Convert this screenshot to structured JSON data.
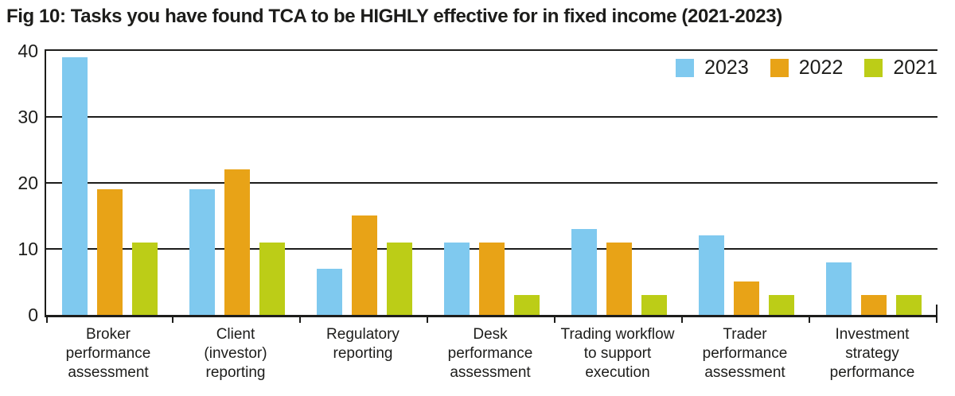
{
  "figure": {
    "title": "Fig 10: Tasks you have found TCA to be HIGHLY effective for in fixed income (2021-2023)"
  },
  "chart_data": {
    "type": "bar",
    "title": "Fig 10: Tasks you have found TCA to be HIGHLY effective for in fixed income (2021-2023)",
    "categories": [
      "Broker\nperformance\nassessment",
      "Client\n(investor)\nreporting",
      "Regulatory\nreporting",
      "Desk\nperformance\nassessment",
      "Trading workflow\nto support\nexecution",
      "Trader\nperformance\nassessment",
      "Investment\nstrategy\nperformance"
    ],
    "series": [
      {
        "name": "2023",
        "color": "#7FC9EF",
        "values": [
          39,
          19,
          7,
          11,
          13,
          12,
          8
        ]
      },
      {
        "name": "2022",
        "color": "#E8A317",
        "values": [
          19,
          22,
          15,
          11,
          11,
          5,
          3
        ]
      },
      {
        "name": "2021",
        "color": "#BCCD17",
        "values": [
          11,
          11,
          11,
          3,
          3,
          3,
          3
        ]
      }
    ],
    "xlabel": "",
    "ylabel": "",
    "ylim": [
      0,
      40
    ],
    "yticks": [
      0,
      10,
      20,
      30,
      40
    ],
    "grid": "horizontal",
    "legend_position": "top-right",
    "axis_color": "#1d1d1b"
  }
}
